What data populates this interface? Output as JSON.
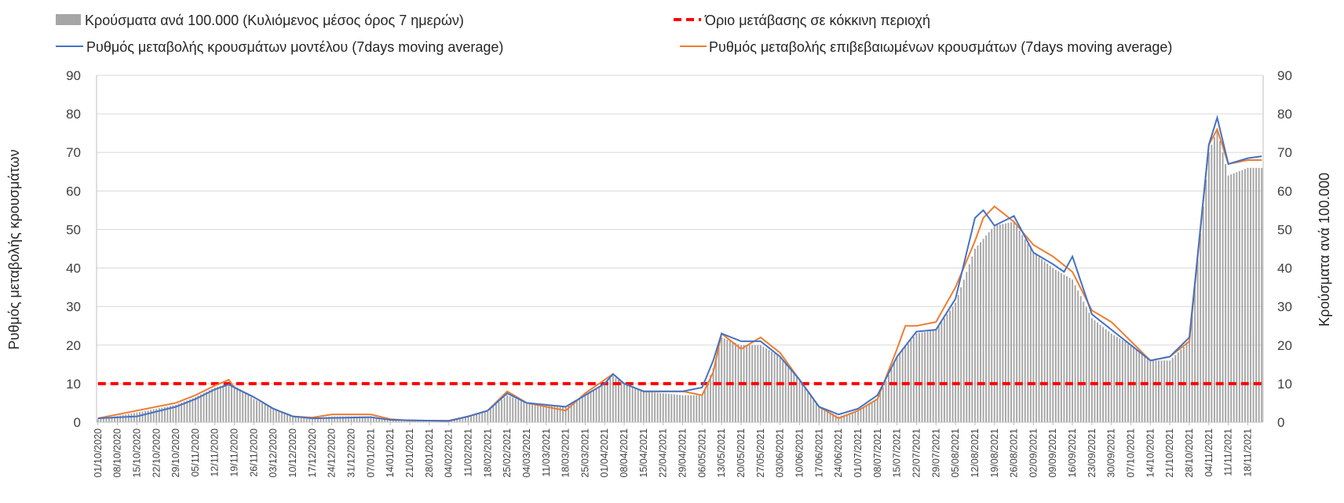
{
  "chart_data": {
    "type": "bar+line",
    "legend": {
      "bars": "Κρούσματα ανά 100.000 (Κυλιόμενος μέσος όρος 7 ημερών)",
      "threshold": "Όριο μετάβασης σε κόκκινη περιοχή",
      "model": "Ρυθμός μεταβολής κρουσμάτων μοντέλου (7days moving average)",
      "confirmed": "Ρυθμός μεταβολής επιβεβαιωμένων κρουσμάτων (7days moving average)"
    },
    "ylabel_left": "Ρυθμός μεταβολής κρουσμάτων",
    "ylabel_right": "Κρούσματα ανά 100.000",
    "ylim_left": [
      0,
      90
    ],
    "ylim_right": [
      0,
      90
    ],
    "yticks": [
      "0",
      "10",
      "20",
      "30",
      "40",
      "50",
      "60",
      "70",
      "80",
      "90"
    ],
    "grid": "horizontal",
    "legend_position": "top",
    "start_date": "01/10/2020",
    "end_date": "23/11/2021",
    "x_tick_labels": [
      "01/10/2020",
      "08/10/2020",
      "15/10/2020",
      "22/10/2020",
      "29/10/2020",
      "05/11/2020",
      "12/11/2020",
      "19/11/2020",
      "26/11/2020",
      "03/12/2020",
      "10/12/2020",
      "17/12/2020",
      "24/12/2020",
      "31/12/2020",
      "07/01/2021",
      "14/01/2021",
      "21/01/2021",
      "28/01/2021",
      "04/02/2021",
      "11/02/2021",
      "18/02/2021",
      "25/02/2021",
      "04/03/2021",
      "11/03/2021",
      "18/03/2021",
      "25/03/2021",
      "01/04/2021",
      "08/04/2021",
      "15/04/2021",
      "22/04/2021",
      "29/04/2021",
      "06/05/2021",
      "13/05/2021",
      "20/05/2021",
      "27/05/2021",
      "03/06/2021",
      "10/06/2021",
      "17/06/2021",
      "24/06/2021",
      "01/07/2021",
      "08/07/2021",
      "15/07/2021",
      "22/07/2021",
      "29/07/2021",
      "05/08/2021",
      "12/08/2021",
      "19/08/2021",
      "26/08/2021",
      "02/09/2021",
      "09/09/2021",
      "16/09/2021",
      "23/09/2021",
      "30/09/2021",
      "07/10/2021",
      "14/10/2021",
      "21/10/2021",
      "28/10/2021",
      "04/11/2021",
      "11/11/2021",
      "18/11/2021"
    ],
    "threshold_value": 10,
    "bars_keypoints": [
      [
        "01/10/2020",
        0.8
      ],
      [
        "15/10/2020",
        2.5
      ],
      [
        "29/10/2020",
        4.5
      ],
      [
        "05/11/2020",
        6.5
      ],
      [
        "12/11/2020",
        9
      ],
      [
        "17/11/2020",
        10
      ],
      [
        "19/11/2020",
        9.5
      ],
      [
        "26/11/2020",
        6
      ],
      [
        "03/12/2020",
        3.5
      ],
      [
        "10/12/2020",
        1.5
      ],
      [
        "17/12/2020",
        1
      ],
      [
        "24/12/2020",
        1.5
      ],
      [
        "07/01/2021",
        1.5
      ],
      [
        "14/01/2021",
        0.6
      ],
      [
        "21/01/2021",
        0.3
      ],
      [
        "04/02/2021",
        0.2
      ],
      [
        "11/02/2021",
        1.5
      ],
      [
        "18/02/2021",
        3
      ],
      [
        "25/02/2021",
        7
      ],
      [
        "04/03/2021",
        5
      ],
      [
        "18/03/2021",
        4
      ],
      [
        "25/03/2021",
        7
      ],
      [
        "01/04/2021",
        10
      ],
      [
        "04/04/2021",
        12
      ],
      [
        "08/04/2021",
        10
      ],
      [
        "15/04/2021",
        8
      ],
      [
        "29/04/2021",
        7
      ],
      [
        "06/05/2021",
        7
      ],
      [
        "10/05/2021",
        14
      ],
      [
        "13/05/2021",
        22
      ],
      [
        "20/05/2021",
        20
      ],
      [
        "27/05/2021",
        20
      ],
      [
        "03/06/2021",
        17
      ],
      [
        "10/06/2021",
        11
      ],
      [
        "17/06/2021",
        4
      ],
      [
        "24/06/2021",
        1.5
      ],
      [
        "01/07/2021",
        3
      ],
      [
        "08/07/2021",
        6
      ],
      [
        "15/07/2021",
        17
      ],
      [
        "22/07/2021",
        23
      ],
      [
        "29/07/2021",
        24
      ],
      [
        "05/08/2021",
        31
      ],
      [
        "12/08/2021",
        45
      ],
      [
        "19/08/2021",
        51
      ],
      [
        "26/08/2021",
        52
      ],
      [
        "02/09/2021",
        44
      ],
      [
        "09/09/2021",
        40
      ],
      [
        "16/09/2021",
        37
      ],
      [
        "23/09/2021",
        27
      ],
      [
        "30/09/2021",
        23
      ],
      [
        "07/10/2021",
        20
      ],
      [
        "14/10/2021",
        16
      ],
      [
        "21/10/2021",
        16
      ],
      [
        "28/10/2021",
        21
      ],
      [
        "04/11/2021",
        70
      ],
      [
        "07/11/2021",
        76
      ],
      [
        "11/11/2021",
        64
      ],
      [
        "18/11/2021",
        66
      ],
      [
        "23/11/2021",
        66
      ]
    ],
    "model_keypoints": [
      [
        "01/10/2020",
        1
      ],
      [
        "15/10/2020",
        1.5
      ],
      [
        "29/10/2020",
        4
      ],
      [
        "05/11/2020",
        6
      ],
      [
        "12/11/2020",
        8.5
      ],
      [
        "17/11/2020",
        9.8
      ],
      [
        "19/11/2020",
        9
      ],
      [
        "26/11/2020",
        6.5
      ],
      [
        "03/12/2020",
        3.5
      ],
      [
        "10/12/2020",
        1.5
      ],
      [
        "17/12/2020",
        1
      ],
      [
        "07/01/2021",
        1.3
      ],
      [
        "14/01/2021",
        0.6
      ],
      [
        "04/02/2021",
        0.3
      ],
      [
        "11/02/2021",
        1.5
      ],
      [
        "18/02/2021",
        3
      ],
      [
        "25/02/2021",
        7.5
      ],
      [
        "04/03/2021",
        5
      ],
      [
        "18/03/2021",
        4
      ],
      [
        "25/03/2021",
        7
      ],
      [
        "01/04/2021",
        10
      ],
      [
        "04/04/2021",
        12.5
      ],
      [
        "08/04/2021",
        10
      ],
      [
        "15/04/2021",
        8
      ],
      [
        "29/04/2021",
        8
      ],
      [
        "06/05/2021",
        9
      ],
      [
        "10/05/2021",
        16
      ],
      [
        "13/05/2021",
        23
      ],
      [
        "20/05/2021",
        21
      ],
      [
        "27/05/2021",
        21
      ],
      [
        "03/06/2021",
        17
      ],
      [
        "10/06/2021",
        11
      ],
      [
        "17/06/2021",
        4
      ],
      [
        "24/06/2021",
        2
      ],
      [
        "01/07/2021",
        3.5
      ],
      [
        "08/07/2021",
        7
      ],
      [
        "15/07/2021",
        17
      ],
      [
        "22/07/2021",
        23.5
      ],
      [
        "29/07/2021",
        24
      ],
      [
        "05/08/2021",
        32
      ],
      [
        "12/08/2021",
        53
      ],
      [
        "15/08/2021",
        55
      ],
      [
        "19/08/2021",
        51
      ],
      [
        "26/08/2021",
        53.5
      ],
      [
        "02/09/2021",
        44
      ],
      [
        "09/09/2021",
        41
      ],
      [
        "13/09/2021",
        39
      ],
      [
        "16/09/2021",
        43
      ],
      [
        "23/09/2021",
        28
      ],
      [
        "30/09/2021",
        24
      ],
      [
        "07/10/2021",
        20
      ],
      [
        "14/10/2021",
        16
      ],
      [
        "21/10/2021",
        17
      ],
      [
        "28/10/2021",
        22
      ],
      [
        "04/11/2021",
        72
      ],
      [
        "07/11/2021",
        79
      ],
      [
        "11/11/2021",
        67
      ],
      [
        "18/11/2021",
        68.5
      ],
      [
        "23/11/2021",
        69
      ]
    ],
    "confirmed_keypoints": [
      [
        "01/10/2020",
        1
      ],
      [
        "08/10/2020",
        2
      ],
      [
        "15/10/2020",
        3
      ],
      [
        "29/10/2020",
        5
      ],
      [
        "05/11/2020",
        7
      ],
      [
        "12/11/2020",
        9.5
      ],
      [
        "17/11/2020",
        11
      ],
      [
        "19/11/2020",
        9
      ],
      [
        "26/11/2020",
        6.5
      ],
      [
        "03/12/2020",
        3.5
      ],
      [
        "10/12/2020",
        1.5
      ],
      [
        "17/12/2020",
        1.2
      ],
      [
        "24/12/2020",
        2
      ],
      [
        "07/01/2021",
        2
      ],
      [
        "14/01/2021",
        0.8
      ],
      [
        "21/01/2021",
        0.4
      ],
      [
        "04/02/2021",
        0.4
      ],
      [
        "11/02/2021",
        1.5
      ],
      [
        "18/02/2021",
        3
      ],
      [
        "25/02/2021",
        8
      ],
      [
        "04/03/2021",
        5
      ],
      [
        "18/03/2021",
        3
      ],
      [
        "25/03/2021",
        7.5
      ],
      [
        "01/04/2021",
        11
      ],
      [
        "04/04/2021",
        12.5
      ],
      [
        "08/04/2021",
        10
      ],
      [
        "15/04/2021",
        8
      ],
      [
        "29/04/2021",
        8
      ],
      [
        "06/05/2021",
        7
      ],
      [
        "10/05/2021",
        13
      ],
      [
        "13/05/2021",
        23
      ],
      [
        "20/05/2021",
        19
      ],
      [
        "27/05/2021",
        22
      ],
      [
        "03/06/2021",
        18
      ],
      [
        "10/06/2021",
        11
      ],
      [
        "17/06/2021",
        4
      ],
      [
        "24/06/2021",
        1
      ],
      [
        "01/07/2021",
        3
      ],
      [
        "08/07/2021",
        6
      ],
      [
        "15/07/2021",
        19
      ],
      [
        "18/07/2021",
        25
      ],
      [
        "22/07/2021",
        25
      ],
      [
        "29/07/2021",
        26
      ],
      [
        "05/08/2021",
        35
      ],
      [
        "12/08/2021",
        47
      ],
      [
        "15/08/2021",
        53
      ],
      [
        "19/08/2021",
        56
      ],
      [
        "26/08/2021",
        52
      ],
      [
        "02/09/2021",
        46
      ],
      [
        "09/09/2021",
        43
      ],
      [
        "16/09/2021",
        39
      ],
      [
        "23/09/2021",
        29
      ],
      [
        "30/09/2021",
        26
      ],
      [
        "07/10/2021",
        21
      ],
      [
        "14/10/2021",
        16
      ],
      [
        "21/10/2021",
        17
      ],
      [
        "28/10/2021",
        21
      ],
      [
        "04/11/2021",
        72
      ],
      [
        "07/11/2021",
        76
      ],
      [
        "11/11/2021",
        67
      ],
      [
        "18/11/2021",
        68
      ],
      [
        "23/11/2021",
        68
      ]
    ]
  }
}
